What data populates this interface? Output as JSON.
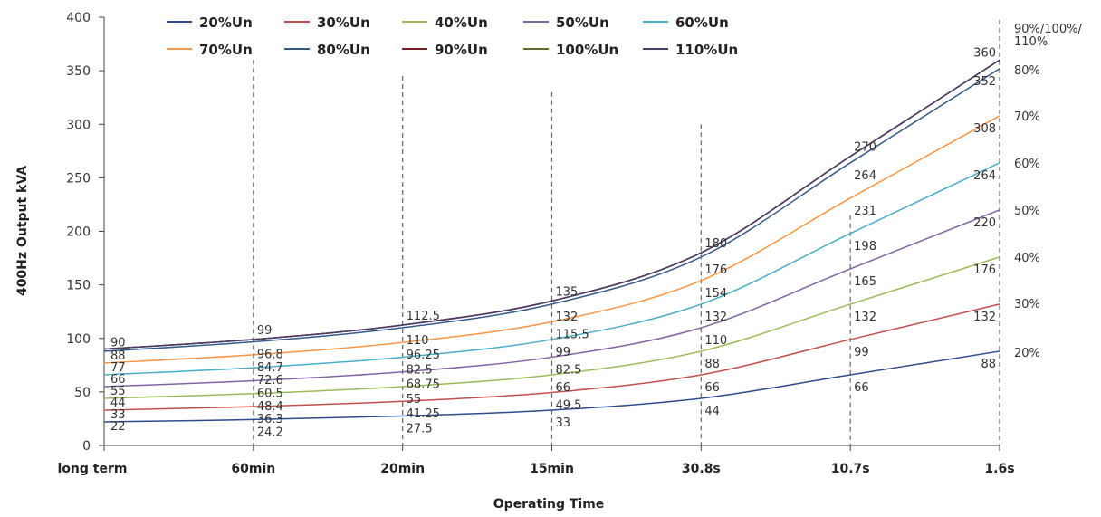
{
  "chart_data": {
    "type": "line",
    "title": "",
    "ylabel": "400Hz Output kVA",
    "xlabel": "Operating Time",
    "ylim": [
      0,
      400
    ],
    "yticks": [
      0,
      50,
      100,
      150,
      200,
      250,
      300,
      350,
      400
    ],
    "categories": [
      "long term",
      "60min",
      "20min",
      "15min",
      "30.8s",
      "10.7s",
      "1.6s"
    ],
    "grid": false,
    "legend_position": "top",
    "series": [
      {
        "name": "20%Un",
        "color": "#2f4b8c",
        "values": [
          22,
          24.2,
          27.5,
          33,
          44,
          66,
          88
        ]
      },
      {
        "name": "30%Un",
        "color": "#c0504d",
        "values": [
          33,
          36.3,
          41.25,
          49.5,
          66,
          99,
          132
        ]
      },
      {
        "name": "40%Un",
        "color": "#9bbb59",
        "values": [
          44,
          48.4,
          55,
          66,
          88,
          132,
          176
        ]
      },
      {
        "name": "50%Un",
        "color": "#8064a2",
        "values": [
          55,
          60.5,
          68.75,
          82.5,
          110,
          165,
          220
        ]
      },
      {
        "name": "60%Un",
        "color": "#4bacc6",
        "values": [
          66,
          72.6,
          82.5,
          99,
          132,
          198,
          264
        ]
      },
      {
        "name": "70%Un",
        "color": "#f79646",
        "values": [
          77,
          84.7,
          96.25,
          115.5,
          154,
          231,
          308
        ]
      },
      {
        "name": "80%Un",
        "color": "#355a8a",
        "values": [
          88,
          96.8,
          110,
          132,
          176,
          264,
          352
        ]
      },
      {
        "name": "90%Un",
        "color": "#7b1f1f",
        "values": [
          90,
          99,
          112.5,
          135,
          180,
          270,
          360
        ]
      },
      {
        "name": "100%Un",
        "color": "#5f6b2a",
        "values": [
          90,
          99,
          112.5,
          135,
          180,
          270,
          360
        ]
      },
      {
        "name": "110%Un",
        "color": "#4b3b6b",
        "values": [
          90,
          99,
          112.5,
          135,
          180,
          270,
          360
        ]
      }
    ],
    "data_labels": [
      [
        "90",
        "88",
        "77",
        "66",
        "55",
        "44",
        "33",
        "22"
      ],
      [
        "99",
        "96.8",
        "84.7",
        "72.6",
        "60.5",
        "48.4",
        "36.3",
        "24.2"
      ],
      [
        "112.5",
        "110",
        "96.25",
        "82.5",
        "68.75",
        "55",
        "41.25",
        "27.5"
      ],
      [
        "135",
        "132",
        "115.5",
        "99",
        "82.5",
        "66",
        "49.5",
        "33"
      ],
      [
        "180",
        "176",
        "154",
        "132",
        "110",
        "88",
        "66",
        "44"
      ],
      [
        "270",
        "264",
        "231",
        "198",
        "165",
        "132",
        "99",
        "66"
      ],
      [
        "360",
        "352",
        "308",
        "264",
        "220",
        "176",
        "132",
        "88"
      ]
    ],
    "right_labels": [
      {
        "text": "90%/100%/",
        "y": 360
      },
      {
        "text": "110%",
        "y": 360
      },
      {
        "text": "80%",
        "y": 352
      },
      {
        "text": "70%",
        "y": 308
      },
      {
        "text": "60%",
        "y": 264
      },
      {
        "text": "50%",
        "y": 220
      },
      {
        "text": "40%",
        "y": 176
      },
      {
        "text": "30%",
        "y": 132
      },
      {
        "text": "20%",
        "y": 88
      }
    ]
  }
}
